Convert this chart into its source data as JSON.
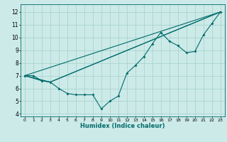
{
  "title": "",
  "xlabel": "Humidex (Indice chaleur)",
  "ylabel": "",
  "bg_color": "#cceae8",
  "grid_color": "#aad4d0",
  "line_color": "#006b6b",
  "xlim": [
    -0.5,
    23.5
  ],
  "ylim": [
    3.8,
    12.6
  ],
  "yticks": [
    4,
    5,
    6,
    7,
    8,
    9,
    10,
    11,
    12
  ],
  "xticks": [
    0,
    1,
    2,
    3,
    4,
    5,
    6,
    7,
    8,
    9,
    10,
    11,
    12,
    13,
    14,
    15,
    16,
    17,
    18,
    19,
    20,
    21,
    22,
    23
  ],
  "lines": [
    {
      "x": [
        0,
        1,
        2,
        3,
        4,
        5,
        6,
        7,
        8,
        9,
        10,
        11,
        12,
        13,
        14,
        15,
        16,
        17,
        18,
        19,
        20,
        21,
        22,
        23
      ],
      "y": [
        7.0,
        7.0,
        6.6,
        6.5,
        6.0,
        5.6,
        5.5,
        5.5,
        5.5,
        4.4,
        5.0,
        5.4,
        7.2,
        7.8,
        8.5,
        9.5,
        10.4,
        9.7,
        9.35,
        8.8,
        8.9,
        10.2,
        11.1,
        12.0
      ],
      "has_markers": true
    },
    {
      "x": [
        0,
        2,
        3,
        23
      ],
      "y": [
        7.0,
        6.6,
        6.5,
        12.0
      ],
      "has_markers": false
    },
    {
      "x": [
        0,
        3,
        23
      ],
      "y": [
        7.0,
        6.5,
        12.0
      ],
      "has_markers": false
    },
    {
      "x": [
        0,
        23
      ],
      "y": [
        7.0,
        12.0
      ],
      "has_markers": false
    }
  ]
}
